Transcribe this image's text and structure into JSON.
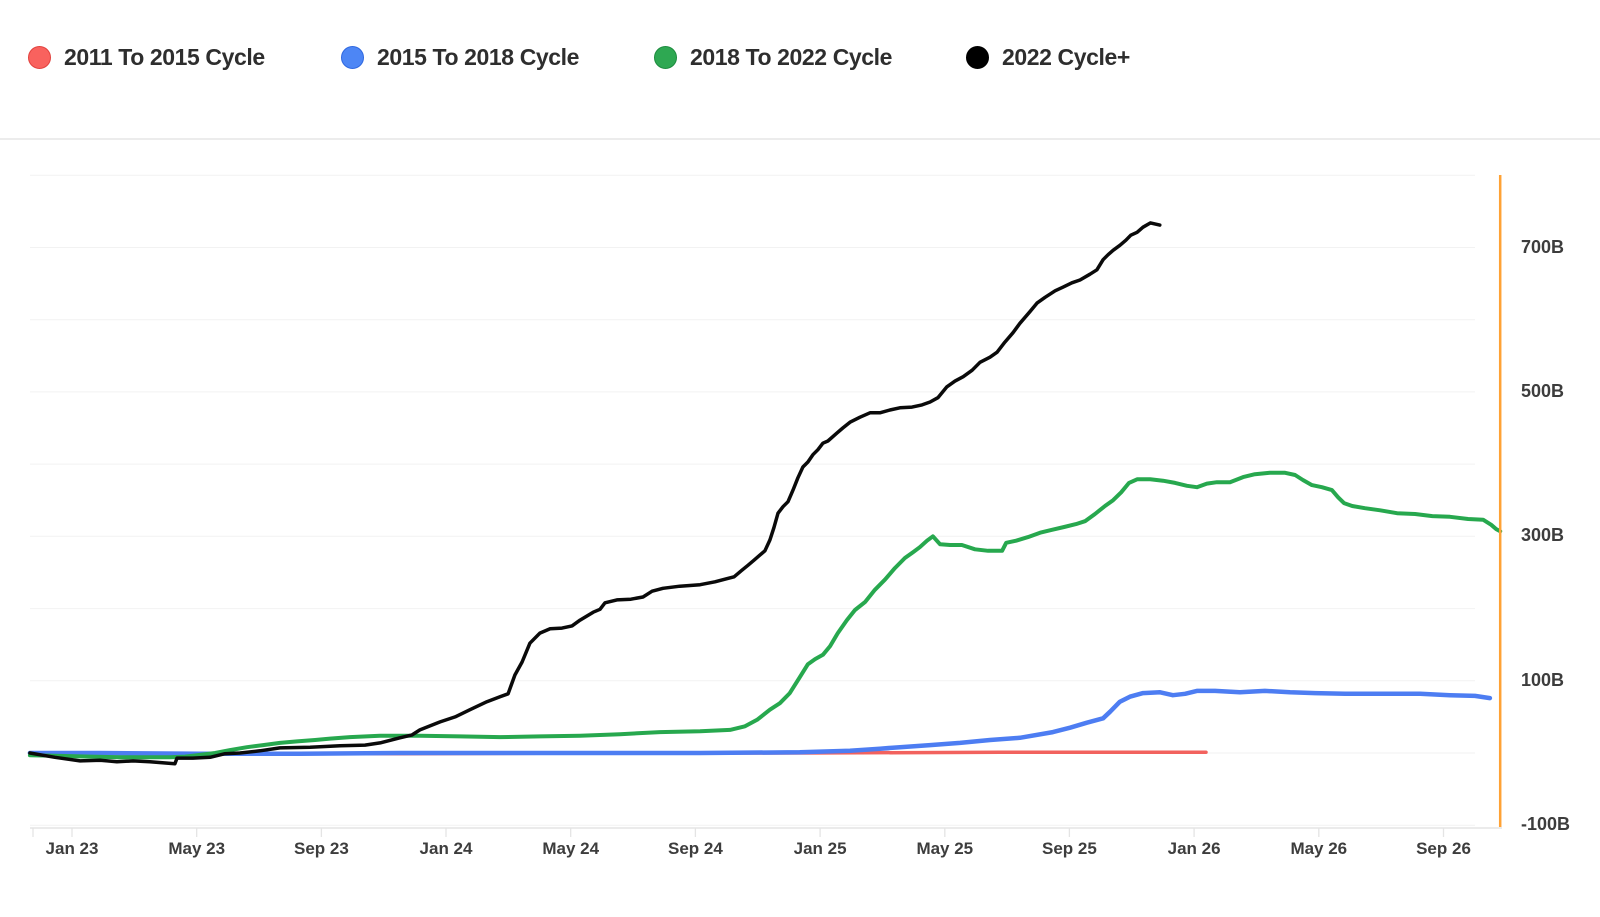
{
  "legend": {
    "items": [
      {
        "label": "2011 To 2015 Cycle",
        "color": "#f9625e",
        "border": "#e2423e"
      },
      {
        "label": "2015 To 2018 Cycle",
        "color": "#4d86f5",
        "border": "#2f68e0"
      },
      {
        "label": "2018 To 2022 Cycle",
        "color": "#2ea852",
        "border": "#1d8c3f"
      },
      {
        "label": "2022 Cycle+",
        "color": "#000000",
        "border": "#000000"
      }
    ]
  },
  "chart_data": {
    "type": "line",
    "title": "",
    "xlabel": "",
    "ylabel": "",
    "grid": "horizontal",
    "legend_position": "top-left",
    "x_axis": {
      "unit": "month index (1 = Jan 2023)",
      "tick_labels": [
        "Jan 23",
        "May 23",
        "Sep 23",
        "Jan 24",
        "May 24",
        "Sep 24",
        "Jan 25",
        "May 25",
        "Sep 25",
        "Jan 26",
        "May 26",
        "Sep 26"
      ],
      "tick_months": [
        1,
        5,
        9,
        13,
        17,
        21,
        25,
        29,
        33,
        37,
        41,
        45
      ]
    },
    "y_axis": {
      "unit": "B",
      "tick_labels": [
        "-100B",
        "100B",
        "300B",
        "500B",
        "700B"
      ],
      "tick_values": [
        -100,
        100,
        300,
        500,
        700
      ],
      "grid_min": -100,
      "grid_max": 800,
      "grid_step": 100,
      "ylim": [
        -100,
        800
      ]
    },
    "marker_line": {
      "month": 46.82,
      "color": "#ffa235"
    },
    "series": [
      {
        "name": "2011 To 2015 Cycle",
        "color": "#f2625e",
        "points": [
          [
            -0.35,
            0
          ],
          [
            5.11,
            -1
          ],
          [
            11.52,
            -1
          ],
          [
            17.94,
            0
          ],
          [
            24.35,
            0
          ],
          [
            30.77,
            1
          ],
          [
            33.98,
            1
          ],
          [
            37.38,
            1
          ]
        ]
      },
      {
        "name": "2015 To 2018 Cycle",
        "color": "#4d7df2",
        "points": [
          [
            -0.35,
            0
          ],
          [
            1.9,
            0
          ],
          [
            5.11,
            -1
          ],
          [
            8.31,
            -1
          ],
          [
            11.52,
            0
          ],
          [
            14.73,
            0
          ],
          [
            17.94,
            0
          ],
          [
            21.15,
            0
          ],
          [
            24.35,
            1
          ],
          [
            25.96,
            3
          ],
          [
            26.92,
            6
          ],
          [
            27.56,
            8
          ],
          [
            28.53,
            11
          ],
          [
            29.49,
            14
          ],
          [
            30.45,
            18
          ],
          [
            31.41,
            21
          ],
          [
            32.47,
            29
          ],
          [
            33.02,
            35
          ],
          [
            33.56,
            42
          ],
          [
            34.08,
            48
          ],
          [
            34.3,
            57
          ],
          [
            34.62,
            71
          ],
          [
            34.94,
            78
          ],
          [
            35.36,
            83
          ],
          [
            35.91,
            84
          ],
          [
            36.32,
            80
          ],
          [
            36.71,
            82
          ],
          [
            37.09,
            86
          ],
          [
            37.67,
            86
          ],
          [
            38.47,
            84
          ],
          [
            39.27,
            86
          ],
          [
            40.08,
            84
          ],
          [
            40.88,
            83
          ],
          [
            41.84,
            82
          ],
          [
            42.97,
            82
          ],
          [
            44.25,
            82
          ],
          [
            45.21,
            80
          ],
          [
            46.01,
            79
          ],
          [
            46.49,
            76
          ]
        ]
      },
      {
        "name": "2018 To 2022 Cycle",
        "color": "#27a84e",
        "points": [
          [
            -0.35,
            -3
          ],
          [
            0.61,
            -4
          ],
          [
            1.58,
            -5
          ],
          [
            2.54,
            -6
          ],
          [
            3.5,
            -6
          ],
          [
            4.14,
            -6
          ],
          [
            4.63,
            -5
          ],
          [
            5.01,
            -3
          ],
          [
            5.59,
            0
          ],
          [
            6.07,
            4
          ],
          [
            6.61,
            8
          ],
          [
            7.13,
            11
          ],
          [
            7.67,
            14
          ],
          [
            8.22,
            16
          ],
          [
            8.8,
            18
          ],
          [
            9.28,
            20
          ],
          [
            9.92,
            22
          ],
          [
            10.88,
            24
          ],
          [
            12.16,
            24
          ],
          [
            13.45,
            23
          ],
          [
            14.73,
            22
          ],
          [
            16.01,
            23
          ],
          [
            17.3,
            24
          ],
          [
            18.58,
            26
          ],
          [
            19.86,
            29
          ],
          [
            21.15,
            30
          ],
          [
            22.11,
            32
          ],
          [
            22.59,
            37
          ],
          [
            22.98,
            46
          ],
          [
            23.39,
            60
          ],
          [
            23.71,
            69
          ],
          [
            24.03,
            83
          ],
          [
            24.35,
            105
          ],
          [
            24.61,
            123
          ],
          [
            24.84,
            130
          ],
          [
            25.09,
            136
          ],
          [
            25.32,
            148
          ],
          [
            25.57,
            166
          ],
          [
            25.86,
            184
          ],
          [
            26.12,
            198
          ],
          [
            26.44,
            209
          ],
          [
            26.76,
            226
          ],
          [
            27.08,
            240
          ],
          [
            27.4,
            256
          ],
          [
            27.72,
            270
          ],
          [
            27.98,
            278
          ],
          [
            28.2,
            285
          ],
          [
            28.43,
            294
          ],
          [
            28.62,
            300
          ],
          [
            28.85,
            289
          ],
          [
            29.17,
            288
          ],
          [
            29.55,
            288
          ],
          [
            29.97,
            282
          ],
          [
            30.39,
            280
          ],
          [
            30.84,
            280
          ],
          [
            30.97,
            291
          ],
          [
            31.29,
            294
          ],
          [
            31.67,
            299
          ],
          [
            32.06,
            305
          ],
          [
            32.44,
            309
          ],
          [
            32.83,
            313
          ],
          [
            33.21,
            317
          ],
          [
            33.5,
            321
          ],
          [
            33.82,
            331
          ],
          [
            34.14,
            342
          ],
          [
            34.4,
            350
          ],
          [
            34.66,
            361
          ],
          [
            34.91,
            374
          ],
          [
            35.17,
            379
          ],
          [
            35.59,
            379
          ],
          [
            36.0,
            377
          ],
          [
            36.39,
            374
          ],
          [
            36.77,
            370
          ],
          [
            37.09,
            368
          ],
          [
            37.41,
            373
          ],
          [
            37.73,
            375
          ],
          [
            38.15,
            375
          ],
          [
            38.57,
            382
          ],
          [
            38.95,
            386
          ],
          [
            39.43,
            388
          ],
          [
            39.92,
            388
          ],
          [
            40.24,
            385
          ],
          [
            40.49,
            378
          ],
          [
            40.78,
            371
          ],
          [
            41.1,
            368
          ],
          [
            41.42,
            364
          ],
          [
            41.62,
            354
          ],
          [
            41.81,
            346
          ],
          [
            42.07,
            342
          ],
          [
            42.48,
            339
          ],
          [
            42.97,
            336
          ],
          [
            43.51,
            332
          ],
          [
            44.09,
            331
          ],
          [
            44.64,
            328
          ],
          [
            45.21,
            327
          ],
          [
            45.79,
            324
          ],
          [
            46.27,
            323
          ],
          [
            46.53,
            316
          ],
          [
            46.69,
            310
          ],
          [
            46.82,
            307
          ]
        ]
      },
      {
        "name": "2022 Cycle+",
        "color": "#0a0a0a",
        "points": [
          [
            -0.35,
            0
          ],
          [
            0.45,
            -6
          ],
          [
            1.26,
            -11
          ],
          [
            1.9,
            -10
          ],
          [
            2.44,
            -12
          ],
          [
            2.96,
            -11
          ],
          [
            3.5,
            -12
          ],
          [
            4.05,
            -14
          ],
          [
            4.3,
            -15
          ],
          [
            4.37,
            -7
          ],
          [
            4.88,
            -7
          ],
          [
            5.43,
            -6
          ],
          [
            5.91,
            -1
          ],
          [
            6.39,
            0
          ],
          [
            7.03,
            3
          ],
          [
            7.67,
            7
          ],
          [
            8.64,
            8
          ],
          [
            9.6,
            10
          ],
          [
            10.4,
            11
          ],
          [
            10.88,
            14
          ],
          [
            11.52,
            21
          ],
          [
            11.91,
            25
          ],
          [
            12.16,
            32
          ],
          [
            12.81,
            43
          ],
          [
            13.29,
            50
          ],
          [
            13.77,
            60
          ],
          [
            14.31,
            71
          ],
          [
            14.73,
            78
          ],
          [
            14.99,
            82
          ],
          [
            15.21,
            108
          ],
          [
            15.44,
            126
          ],
          [
            15.69,
            152
          ],
          [
            16.01,
            166
          ],
          [
            16.34,
            172
          ],
          [
            16.72,
            173
          ],
          [
            17.04,
            176
          ],
          [
            17.3,
            184
          ],
          [
            17.72,
            195
          ],
          [
            17.94,
            199
          ],
          [
            18.1,
            208
          ],
          [
            18.48,
            212
          ],
          [
            18.93,
            213
          ],
          [
            19.32,
            216
          ],
          [
            19.61,
            224
          ],
          [
            19.96,
            228
          ],
          [
            20.5,
            231
          ],
          [
            21.15,
            233
          ],
          [
            21.63,
            237
          ],
          [
            21.98,
            241
          ],
          [
            22.24,
            244
          ],
          [
            22.49,
            253
          ],
          [
            22.69,
            260
          ],
          [
            22.88,
            267
          ],
          [
            23.07,
            274
          ],
          [
            23.23,
            280
          ],
          [
            23.39,
            295
          ],
          [
            23.52,
            312
          ],
          [
            23.65,
            332
          ],
          [
            23.81,
            341
          ],
          [
            23.97,
            348
          ],
          [
            24.13,
            364
          ],
          [
            24.29,
            381
          ],
          [
            24.45,
            396
          ],
          [
            24.61,
            403
          ],
          [
            24.77,
            413
          ],
          [
            24.93,
            420
          ],
          [
            25.09,
            429
          ],
          [
            25.25,
            432
          ],
          [
            25.54,
            443
          ],
          [
            25.73,
            450
          ],
          [
            25.96,
            458
          ],
          [
            26.28,
            465
          ],
          [
            26.6,
            471
          ],
          [
            26.92,
            471
          ],
          [
            27.24,
            475
          ],
          [
            27.56,
            478
          ],
          [
            27.95,
            479
          ],
          [
            28.27,
            482
          ],
          [
            28.53,
            486
          ],
          [
            28.78,
            492
          ],
          [
            29.07,
            507
          ],
          [
            29.33,
            515
          ],
          [
            29.59,
            521
          ],
          [
            29.88,
            530
          ],
          [
            30.13,
            541
          ],
          [
            30.45,
            548
          ],
          [
            30.68,
            555
          ],
          [
            30.93,
            569
          ],
          [
            31.19,
            582
          ],
          [
            31.41,
            595
          ],
          [
            31.73,
            611
          ],
          [
            31.96,
            623
          ],
          [
            32.22,
            631
          ],
          [
            32.54,
            640
          ],
          [
            32.79,
            645
          ],
          [
            33.08,
            651
          ],
          [
            33.34,
            655
          ],
          [
            33.66,
            663
          ],
          [
            33.88,
            669
          ],
          [
            34.08,
            683
          ],
          [
            34.24,
            690
          ],
          [
            34.4,
            696
          ],
          [
            34.62,
            703
          ],
          [
            34.81,
            710
          ],
          [
            34.97,
            717
          ],
          [
            35.17,
            721
          ],
          [
            35.36,
            728
          ],
          [
            35.6,
            734
          ],
          [
            35.9,
            731
          ]
        ]
      }
    ]
  }
}
